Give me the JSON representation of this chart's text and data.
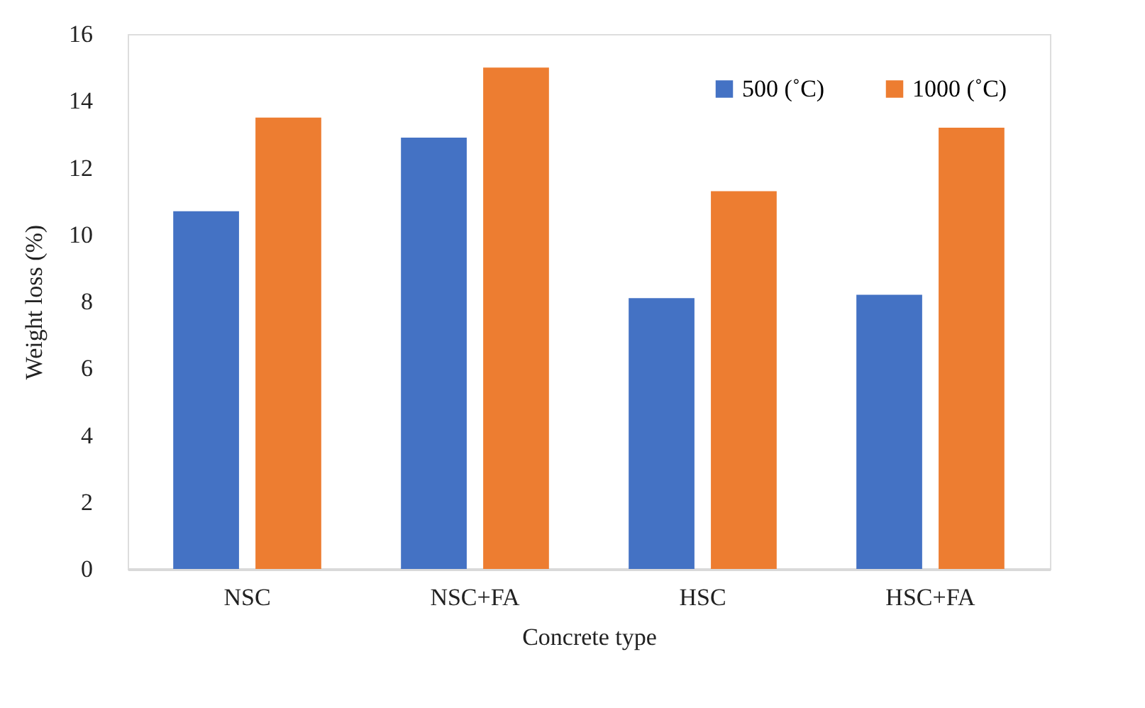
{
  "chart_data": {
    "type": "bar",
    "xlabel": "Concrete type",
    "ylabel": "Weight loss (%)",
    "categories": [
      "NSC",
      "NSC+FA",
      "HSC",
      "HSC+FA"
    ],
    "series": [
      {
        "name": "500 (˚C)",
        "color": "#4472c4",
        "values": [
          10.7,
          12.9,
          8.1,
          8.2
        ]
      },
      {
        "name": "1000 (˚C)",
        "color": "#ed7d31",
        "values": [
          13.5,
          15.0,
          11.3,
          13.2
        ]
      }
    ],
    "ylim": [
      0,
      16
    ],
    "yticks": [
      0,
      2,
      4,
      6,
      8,
      10,
      12,
      14,
      16
    ],
    "grid": false,
    "legend": "top right"
  }
}
